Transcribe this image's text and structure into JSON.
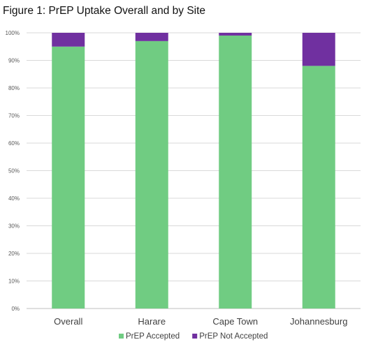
{
  "figure_title": "Figure 1: PrEP Uptake Overall and by Site",
  "chart_data": {
    "type": "bar",
    "stacked": true,
    "categories": [
      "Overall",
      "Harare",
      "Cape Town",
      "Johannesburg"
    ],
    "series": [
      {
        "name": "PrEP Accepted",
        "values": [
          95,
          97,
          99,
          88
        ],
        "color": "#70CC82"
      },
      {
        "name": "PrEP Not Accepted",
        "values": [
          5,
          3,
          1,
          12
        ],
        "color": "#7030A0"
      }
    ],
    "y_ticks": [
      "0%",
      "10%",
      "20%",
      "30%",
      "40%",
      "50%",
      "60%",
      "70%",
      "80%",
      "90%",
      "100%"
    ],
    "ylim": [
      0,
      100
    ],
    "grid": true,
    "legend": "bottom",
    "title": "",
    "xlabel": "",
    "ylabel": ""
  }
}
